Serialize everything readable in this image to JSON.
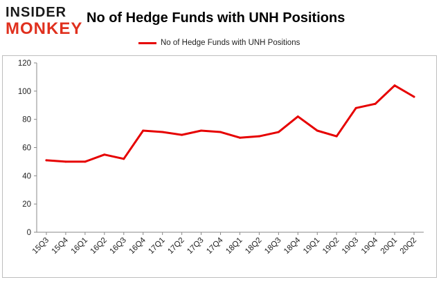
{
  "logo": {
    "line1": "INSIDER",
    "line2": "MONKEY"
  },
  "chart_data": {
    "type": "line",
    "title": "No of Hedge Funds with UNH Positions",
    "xlabel": "",
    "ylabel": "",
    "categories": [
      "15Q3",
      "15Q4",
      "16Q1",
      "16Q2",
      "16Q3",
      "16Q4",
      "17Q1",
      "17Q2",
      "17Q3",
      "17Q4",
      "18Q1",
      "18Q2",
      "18Q3",
      "18Q4",
      "19Q1",
      "19Q2",
      "19Q3",
      "19Q4",
      "20Q1",
      "20Q2"
    ],
    "series": [
      {
        "name": "No of Hedge Funds with UNH  Positions",
        "values": [
          51,
          50,
          50,
          55,
          52,
          72,
          71,
          69,
          72,
          71,
          67,
          68,
          71,
          82,
          72,
          68,
          88,
          91,
          104,
          96
        ],
        "color": "#e60000"
      }
    ],
    "ylim": [
      0,
      120
    ],
    "yticks": [
      0,
      20,
      40,
      60,
      80,
      100,
      120
    ],
    "grid": false,
    "legend_position": "top-center"
  }
}
